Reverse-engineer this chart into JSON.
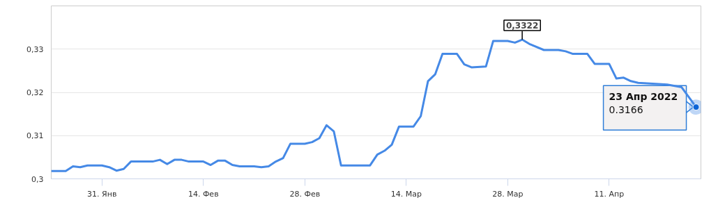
{
  "chart_data": {
    "type": "line",
    "grid": "y",
    "marker": "none",
    "line_style": "solid",
    "x": [
      "2022-01-24",
      "2022-01-26",
      "2022-01-27",
      "2022-01-28",
      "2022-01-29",
      "2022-01-31",
      "2022-02-01",
      "2022-02-02",
      "2022-02-03",
      "2022-02-04",
      "2022-02-07",
      "2022-02-08",
      "2022-02-09",
      "2022-02-10",
      "2022-02-11",
      "2022-02-12",
      "2022-02-14",
      "2022-02-15",
      "2022-02-16",
      "2022-02-17",
      "2022-02-18",
      "2022-02-19",
      "2022-02-21",
      "2022-02-22",
      "2022-02-23",
      "2022-02-24",
      "2022-02-25",
      "2022-02-26",
      "2022-02-28",
      "2022-03-01",
      "2022-03-02",
      "2022-03-03",
      "2022-03-04",
      "2022-03-05",
      "2022-03-09",
      "2022-03-10",
      "2022-03-11",
      "2022-03-12",
      "2022-03-13",
      "2022-03-15",
      "2022-03-16",
      "2022-03-17",
      "2022-03-18",
      "2022-03-19",
      "2022-03-21",
      "2022-03-22",
      "2022-03-23",
      "2022-03-25",
      "2022-03-26",
      "2022-03-28",
      "2022-03-29",
      "2022-03-30",
      "2022-03-31",
      "2022-04-02",
      "2022-04-04",
      "2022-04-05",
      "2022-04-06",
      "2022-04-08",
      "2022-04-09",
      "2022-04-11",
      "2022-04-12",
      "2022-04-13",
      "2022-04-14",
      "2022-04-15",
      "2022-04-17",
      "2022-04-19",
      "2022-04-21",
      "2022-04-23"
    ],
    "series": [
      {
        "color": "#4589e6",
        "values": [
          0.3018,
          0.3018,
          0.3029,
          0.3027,
          0.3031,
          0.3031,
          0.3027,
          0.3019,
          0.3023,
          0.304,
          0.304,
          0.3044,
          0.3034,
          0.3044,
          0.3044,
          0.304,
          0.304,
          0.3032,
          0.3042,
          0.3042,
          0.3032,
          0.3029,
          0.3029,
          0.3027,
          0.3029,
          0.304,
          0.3048,
          0.3081,
          0.3081,
          0.3085,
          0.3094,
          0.3124,
          0.311,
          0.3031,
          0.3031,
          0.3056,
          0.3065,
          0.3079,
          0.3121,
          0.3121,
          0.3145,
          0.3226,
          0.3242,
          0.3289,
          0.3289,
          0.3265,
          0.3258,
          0.326,
          0.3319,
          0.3319,
          0.3315,
          0.3322,
          0.3312,
          0.3298,
          0.3298,
          0.3295,
          0.3289,
          0.3289,
          0.3266,
          0.3266,
          0.3232,
          0.3234,
          0.3226,
          0.3222,
          0.322,
          0.3218,
          0.3212,
          0.3166
        ]
      }
    ],
    "xlim": [
      "2022-01-24",
      "2022-04-23T16:00"
    ],
    "xticks": [
      {
        "value": "2022-01-31",
        "label": "31. Янв"
      },
      {
        "value": "2022-02-14",
        "label": "14. Фев"
      },
      {
        "value": "2022-02-28",
        "label": "28. Фев"
      },
      {
        "value": "2022-03-14",
        "label": "14. Мар"
      },
      {
        "value": "2022-03-28",
        "label": "28. Мар"
      },
      {
        "value": "2022-04-11",
        "label": "11. Апр"
      }
    ],
    "ylim": [
      0.3,
      0.34
    ],
    "yticks": [
      {
        "value": 0.3,
        "label": "0,3"
      },
      {
        "value": 0.31,
        "label": "0,31"
      },
      {
        "value": 0.32,
        "label": "0,32"
      },
      {
        "value": 0.33,
        "label": "0,33"
      },
      {
        "value": 0.34,
        "label": null
      }
    ],
    "annotations": [
      {
        "text": "0,3322",
        "x": "2022-03-30",
        "y": 0.3322
      },
      {
        "text": "23 Апр 2022",
        "x": "2022-04-23",
        "y": 0.3166
      },
      "0.3166"
    ]
  }
}
